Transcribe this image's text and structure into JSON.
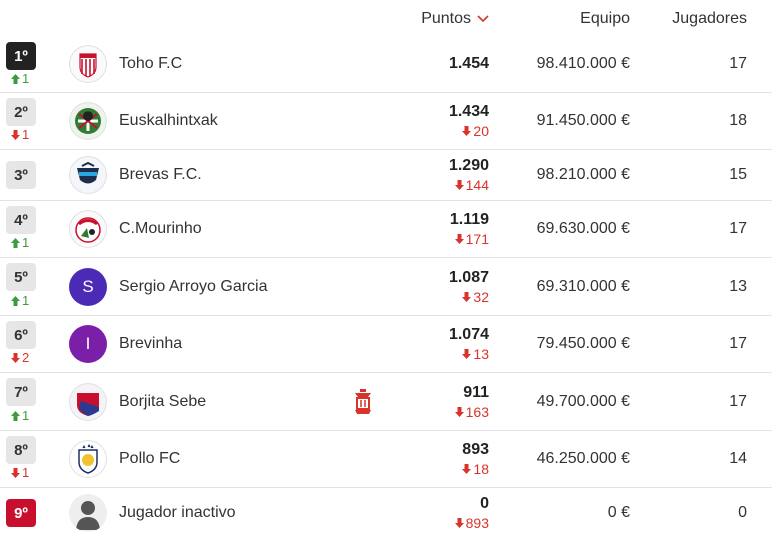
{
  "header": {
    "points_label": "Puntos",
    "team_label": "Equipo",
    "players_label": "Jugadores"
  },
  "colors": {
    "up": "#3d9a3d",
    "down": "#d9342b",
    "first_badge": "#222222",
    "last_badge": "#c8102e"
  },
  "rows": [
    {
      "position": "1º",
      "pos_change": "1",
      "pos_dir": "up",
      "name": "Toho F.C",
      "points": "1.454",
      "points_delta": "",
      "team_value": "98.410.000 €",
      "players": "17",
      "avatar_icon": "toho-crest-icon"
    },
    {
      "position": "2º",
      "pos_change": "1",
      "pos_dir": "down",
      "name": "Euskalhintxak",
      "points": "1.434",
      "points_delta": "20",
      "team_value": "91.450.000 €",
      "players": "18",
      "avatar_icon": "euskalhintxak-crest-icon"
    },
    {
      "position": "3º",
      "pos_change": "",
      "pos_dir": "",
      "name": "Brevas F.C.",
      "points": "1.290",
      "points_delta": "144",
      "team_value": "98.210.000 €",
      "players": "15",
      "avatar_icon": "brevas-crest-icon"
    },
    {
      "position": "4º",
      "pos_change": "1",
      "pos_dir": "up",
      "name": "C.Mourinho",
      "points": "1.119",
      "points_delta": "171",
      "team_value": "69.630.000 €",
      "players": "17",
      "avatar_icon": "mourinho-crest-icon"
    },
    {
      "position": "5º",
      "pos_change": "1",
      "pos_dir": "up",
      "name": "Sergio Arroyo Garcia",
      "points": "1.087",
      "points_delta": "32",
      "team_value": "69.310.000 €",
      "players": "13",
      "avatar_letter": "S",
      "avatar_color": "#4b2bb5"
    },
    {
      "position": "6º",
      "pos_change": "2",
      "pos_dir": "down",
      "name": "Brevinha",
      "points": "1.074",
      "points_delta": "13",
      "team_value": "79.450.000 €",
      "players": "17",
      "avatar_letter": "I",
      "avatar_color": "#7a1fa8"
    },
    {
      "position": "7º",
      "pos_change": "1",
      "pos_dir": "up",
      "name": "Borjita Sebe",
      "points": "911",
      "points_delta": "163",
      "team_value": "49.700.000 €",
      "players": "17",
      "avatar_icon": "borjita-crest-icon",
      "has_lantern": true
    },
    {
      "position": "8º",
      "pos_change": "1",
      "pos_dir": "down",
      "name": "Pollo FC",
      "points": "893",
      "points_delta": "18",
      "team_value": "46.250.000 €",
      "players": "14",
      "avatar_icon": "pollo-crest-icon"
    },
    {
      "position": "9º",
      "pos_change": "",
      "pos_dir": "",
      "name": "Jugador inactivo",
      "points": "0",
      "points_delta": "893",
      "team_value": "0 €",
      "players": "0",
      "avatar_icon": "user-silhouette-icon"
    }
  ]
}
